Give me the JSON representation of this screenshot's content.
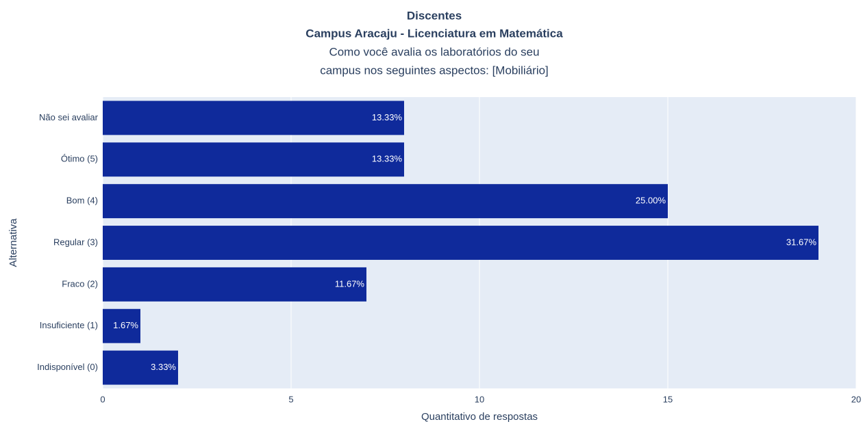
{
  "chart_data": {
    "type": "bar",
    "orientation": "horizontal",
    "title": [
      "Discentes",
      "Campus Aracaju - Licenciatura em Matemática"
    ],
    "subtitle": [
      "Como você avalia os laboratórios do seu",
      "campus nos seguintes aspectos: [Mobiliário]"
    ],
    "xlabel": "Quantitativo de respostas",
    "ylabel": "Alternativa",
    "categories": [
      "Não sei avaliar",
      "Ótimo (5)",
      "Bom (4)",
      "Regular (3)",
      "Fraco (2)",
      "Insuficiente (1)",
      "Indisponível (0)"
    ],
    "values": [
      8,
      8,
      15,
      19,
      7,
      1,
      2
    ],
    "value_labels": [
      "13.33%",
      "13.33%",
      "25.00%",
      "31.67%",
      "11.67%",
      "1.67%",
      "3.33%"
    ],
    "color": "#0f2a9b",
    "xlim": [
      0,
      20
    ],
    "xticks": [
      0,
      5,
      10,
      15,
      20
    ],
    "grid": true
  }
}
